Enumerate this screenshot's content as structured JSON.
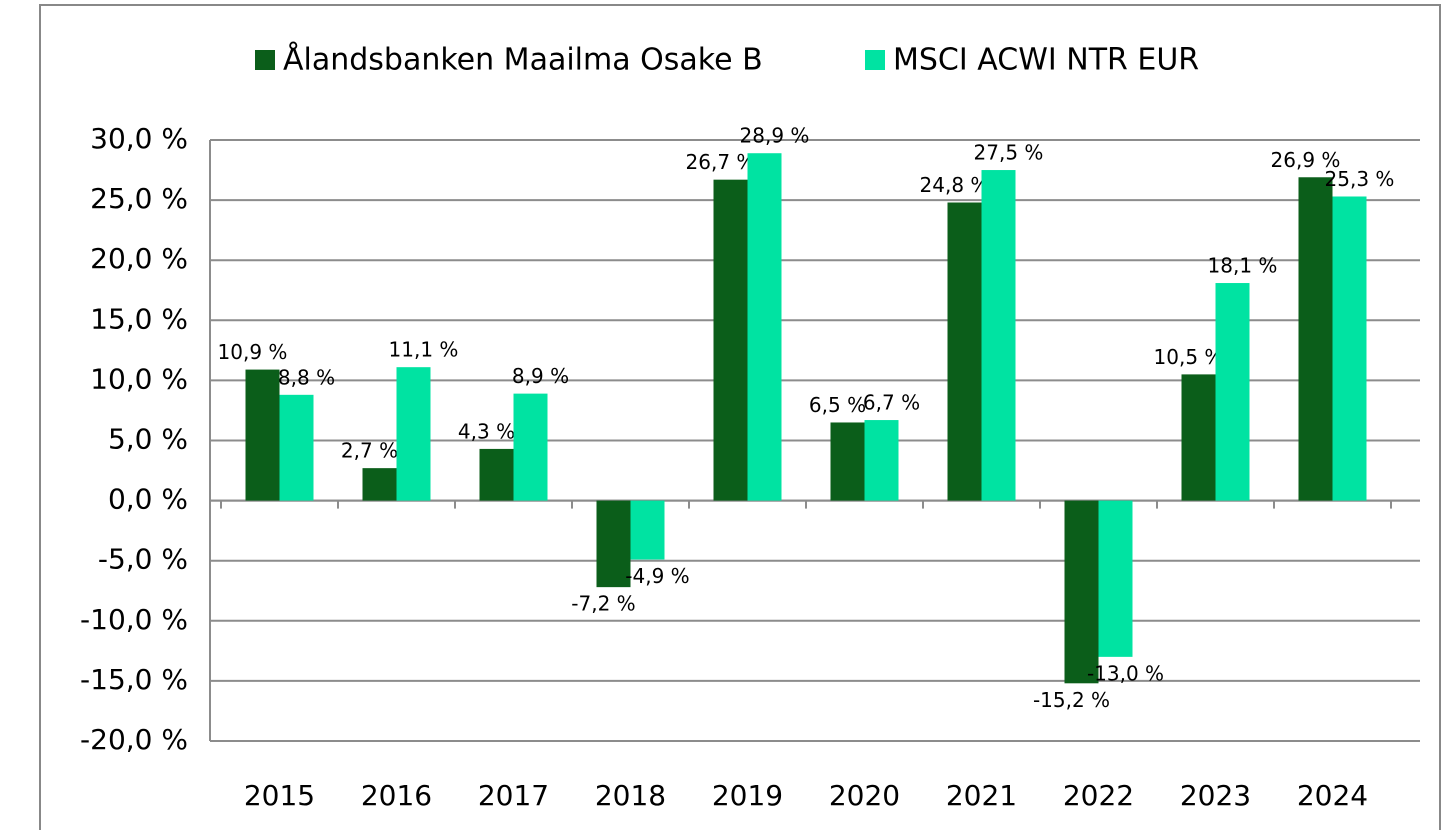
{
  "chart_data": {
    "type": "bar",
    "categories": [
      "2015",
      "2016",
      "2017",
      "2018",
      "2019",
      "2020",
      "2021",
      "2022",
      "2023",
      "2024"
    ],
    "series": [
      {
        "name": "Ålandsbanken Maailma Osake B",
        "color": "#0b5e1a",
        "values": [
          10.9,
          2.7,
          4.3,
          -7.2,
          26.7,
          6.5,
          24.8,
          -15.2,
          10.5,
          26.9
        ],
        "value_labels": [
          "10,9 %",
          "2,7 %",
          "4,3 %",
          "-7,2 %",
          "26,7 %",
          "6,5 %",
          "24,8 %",
          "-15,2 %",
          "10,5 %",
          "26,9 %"
        ]
      },
      {
        "name": "MSCI ACWI NTR EUR",
        "color": "#00e3a2",
        "values": [
          8.8,
          11.1,
          8.9,
          -4.9,
          28.9,
          6.7,
          27.5,
          -13.0,
          18.1,
          25.3
        ],
        "value_labels": [
          "8,8 %",
          "11,1 %",
          "8,9 %",
          "-4,9 %",
          "28,9 %",
          "6,7 %",
          "27,5 %",
          "-13,0 %",
          "18,1 %",
          "25,3 %"
        ]
      }
    ],
    "ylim": [
      -20,
      30
    ],
    "yticks": [
      {
        "value": -20,
        "label": "-20,0 %"
      },
      {
        "value": -15,
        "label": "-15,0 %"
      },
      {
        "value": -10,
        "label": "-10,0 %"
      },
      {
        "value": -5,
        "label": "-5,0 %"
      },
      {
        "value": 0,
        "label": "0,0 %"
      },
      {
        "value": 5,
        "label": "5,0 %"
      },
      {
        "value": 10,
        "label": "10,0 %"
      },
      {
        "value": 15,
        "label": "15,0 %"
      },
      {
        "value": 20,
        "label": "20,0 %"
      },
      {
        "value": 25,
        "label": "25,0 %"
      },
      {
        "value": 30,
        "label": "30,0 %"
      }
    ],
    "grid": true,
    "legend": "top"
  }
}
